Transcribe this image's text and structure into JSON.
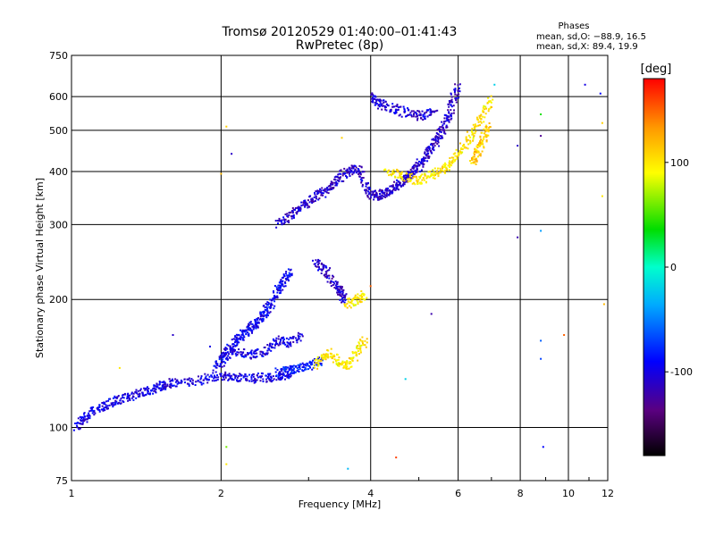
{
  "chart_data": {
    "type": "scatter",
    "title": "Tromsø 20120529 01:40:00–01:41:43",
    "subtitle": "RwPretec (8p)",
    "xlabel": "Frequency [MHz]",
    "ylabel": "Stationary phase Virtual Height [km]",
    "x_scale": "log",
    "y_scale": "log",
    "xlim": [
      1,
      12
    ],
    "ylim": [
      75,
      750
    ],
    "x_ticks": [
      "1",
      "2",
      "4",
      "6",
      "8",
      "10",
      "12"
    ],
    "y_ticks": [
      "75",
      "100",
      "200",
      "300",
      "400",
      "500",
      "600",
      "750"
    ],
    "x_tick_values": [
      1,
      2,
      4,
      6,
      8,
      10,
      12
    ],
    "y_tick_values": [
      75,
      100,
      200,
      300,
      400,
      500,
      600,
      750
    ],
    "grid": true,
    "phases_box": {
      "title": "Phases",
      "line1": "mean, sd,O: −88.9, 16.5",
      "line2": "mean, sd,X:  89.4, 19.9"
    },
    "colorbar": {
      "label": "[deg]",
      "range": [
        -180,
        180
      ],
      "ticks": [
        "100",
        "0",
        "-100"
      ],
      "tick_values": [
        100,
        0,
        -100
      ]
    },
    "traces": [
      {
        "name": "",
        "phase": -100,
        "points": [
          [
            1.02,
            100
          ],
          [
            1.05,
            104
          ],
          [
            1.08,
            107
          ],
          [
            1.12,
            110
          ],
          [
            1.16,
            112
          ],
          [
            1.2,
            114
          ],
          [
            1.25,
            116
          ],
          [
            1.3,
            118
          ],
          [
            1.35,
            120
          ],
          [
            1.4,
            121
          ],
          [
            1.45,
            123
          ],
          [
            1.5,
            124
          ],
          [
            1.55,
            126
          ],
          [
            1.6,
            127
          ],
          [
            1.7,
            128
          ],
          [
            1.8,
            129
          ],
          [
            1.9,
            131
          ],
          [
            2.0,
            132
          ],
          [
            2.1,
            132
          ],
          [
            2.2,
            131
          ],
          [
            2.3,
            130
          ],
          [
            2.4,
            131
          ],
          [
            2.5,
            131
          ],
          [
            2.6,
            132
          ],
          [
            2.7,
            133
          ],
          [
            2.8,
            135
          ]
        ]
      },
      {
        "name": "",
        "phase": -95,
        "points": [
          [
            1.95,
            138
          ],
          [
            2.0,
            142
          ],
          [
            2.05,
            148
          ],
          [
            2.1,
            155
          ],
          [
            2.15,
            160
          ],
          [
            2.2,
            165
          ],
          [
            2.25,
            168
          ],
          [
            2.3,
            172
          ],
          [
            2.35,
            175
          ],
          [
            2.4,
            180
          ],
          [
            2.45,
            186
          ],
          [
            2.5,
            192
          ],
          [
            2.55,
            200
          ],
          [
            2.6,
            210
          ],
          [
            2.65,
            218
          ],
          [
            2.7,
            225
          ],
          [
            2.75,
            235
          ]
        ]
      },
      {
        "name": "",
        "phase": -100,
        "points": [
          [
            2.0,
            150
          ],
          [
            2.1,
            152
          ],
          [
            2.2,
            150
          ],
          [
            2.3,
            148
          ],
          [
            2.4,
            150
          ],
          [
            2.5,
            155
          ],
          [
            2.6,
            160
          ],
          [
            2.7,
            158
          ],
          [
            2.8,
            160
          ],
          [
            2.9,
            165
          ]
        ]
      },
      {
        "name": "",
        "phase": -85,
        "points": [
          [
            2.6,
            135
          ],
          [
            2.7,
            136
          ],
          [
            2.8,
            137
          ],
          [
            2.9,
            138
          ],
          [
            3.0,
            140
          ],
          [
            3.1,
            142
          ],
          [
            3.2,
            143
          ]
        ]
      },
      {
        "name": "",
        "phase": -110,
        "points": [
          [
            2.6,
            300
          ],
          [
            2.7,
            310
          ],
          [
            2.8,
            320
          ],
          [
            2.9,
            330
          ],
          [
            3.0,
            340
          ],
          [
            3.1,
            350
          ],
          [
            3.2,
            355
          ],
          [
            3.3,
            365
          ],
          [
            3.4,
            375
          ],
          [
            3.5,
            390
          ],
          [
            3.6,
            400
          ],
          [
            3.7,
            405
          ],
          [
            3.8,
            400
          ],
          [
            3.9,
            370
          ],
          [
            4.0,
            355
          ],
          [
            4.1,
            350
          ],
          [
            4.2,
            352
          ],
          [
            4.3,
            356
          ],
          [
            4.4,
            362
          ],
          [
            4.5,
            368
          ],
          [
            4.6,
            375
          ],
          [
            4.7,
            383
          ],
          [
            4.8,
            392
          ],
          [
            4.9,
            402
          ],
          [
            5.0,
            413
          ],
          [
            5.1,
            425
          ],
          [
            5.2,
            438
          ],
          [
            5.3,
            452
          ],
          [
            5.4,
            468
          ],
          [
            5.5,
            485
          ],
          [
            5.6,
            505
          ],
          [
            5.7,
            530
          ],
          [
            5.8,
            560
          ],
          [
            5.9,
            600
          ],
          [
            6.0,
            640
          ]
        ]
      },
      {
        "name": "",
        "phase": -110,
        "points": [
          [
            3.1,
            245
          ],
          [
            3.2,
            238
          ],
          [
            3.3,
            228
          ],
          [
            3.4,
            218
          ],
          [
            3.45,
            210
          ],
          [
            3.5,
            205
          ],
          [
            3.55,
            200
          ]
        ]
      },
      {
        "name": "",
        "phase": -105,
        "points": [
          [
            4.0,
            600
          ],
          [
            4.1,
            590
          ],
          [
            4.2,
            575
          ],
          [
            4.4,
            565
          ],
          [
            4.6,
            555
          ],
          [
            4.8,
            545
          ],
          [
            5.0,
            540
          ],
          [
            5.2,
            545
          ],
          [
            5.4,
            560
          ]
        ]
      },
      {
        "name": "",
        "phase": 100,
        "points": [
          [
            3.1,
            140
          ],
          [
            3.2,
            145
          ],
          [
            3.3,
            150
          ],
          [
            3.4,
            145
          ],
          [
            3.5,
            140
          ],
          [
            3.6,
            138
          ],
          [
            3.7,
            145
          ],
          [
            3.8,
            155
          ],
          [
            3.9,
            160
          ]
        ]
      },
      {
        "name": "",
        "phase": 100,
        "points": [
          [
            3.6,
            195
          ],
          [
            3.7,
            198
          ],
          [
            3.8,
            200
          ],
          [
            3.9,
            205
          ]
        ]
      },
      {
        "name": "",
        "phase": 100,
        "points": [
          [
            4.3,
            400
          ],
          [
            4.5,
            395
          ],
          [
            4.8,
            385
          ],
          [
            5.0,
            380
          ],
          [
            5.2,
            390
          ],
          [
            5.4,
            395
          ],
          [
            5.6,
            405
          ],
          [
            5.8,
            420
          ],
          [
            6.0,
            440
          ],
          [
            6.2,
            465
          ],
          [
            6.4,
            490
          ],
          [
            6.6,
            520
          ],
          [
            6.8,
            560
          ],
          [
            7.0,
            595
          ]
        ]
      },
      {
        "name": "",
        "phase": 110,
        "points": [
          [
            6.4,
            420
          ],
          [
            6.5,
            435
          ],
          [
            6.6,
            450
          ],
          [
            6.7,
            470
          ],
          [
            6.8,
            490
          ],
          [
            6.9,
            510
          ]
        ]
      }
    ],
    "scattered_points": [
      {
        "x": 2.1,
        "y": 440,
        "phase": -110
      },
      {
        "x": 2.05,
        "y": 510,
        "phase": 110
      },
      {
        "x": 2.0,
        "y": 395,
        "phase": 120
      },
      {
        "x": 2.05,
        "y": 90,
        "phase": 60
      },
      {
        "x": 2.05,
        "y": 82,
        "phase": 100
      },
      {
        "x": 3.6,
        "y": 80,
        "phase": -30
      },
      {
        "x": 4.0,
        "y": 215,
        "phase": 150
      },
      {
        "x": 4.5,
        "y": 85,
        "phase": 160
      },
      {
        "x": 5.3,
        "y": 185,
        "phase": -120
      },
      {
        "x": 4.7,
        "y": 130,
        "phase": -20
      },
      {
        "x": 7.9,
        "y": 460,
        "phase": -110
      },
      {
        "x": 7.9,
        "y": 280,
        "phase": -120
      },
      {
        "x": 8.8,
        "y": 545,
        "phase": 40
      },
      {
        "x": 8.8,
        "y": 485,
        "phase": -130
      },
      {
        "x": 8.8,
        "y": 290,
        "phase": -40
      },
      {
        "x": 8.8,
        "y": 160,
        "phase": -60
      },
      {
        "x": 8.8,
        "y": 145,
        "phase": -70
      },
      {
        "x": 8.9,
        "y": 90,
        "phase": -90
      },
      {
        "x": 9.8,
        "y": 165,
        "phase": 150
      },
      {
        "x": 10.8,
        "y": 640,
        "phase": -100
      },
      {
        "x": 11.6,
        "y": 610,
        "phase": -90
      },
      {
        "x": 11.7,
        "y": 350,
        "phase": 100
      },
      {
        "x": 11.8,
        "y": 195,
        "phase": 120
      },
      {
        "x": 11.7,
        "y": 520,
        "phase": 110
      },
      {
        "x": 1.25,
        "y": 138,
        "phase": 100
      },
      {
        "x": 1.6,
        "y": 165,
        "phase": -110
      },
      {
        "x": 1.9,
        "y": 155,
        "phase": -100
      },
      {
        "x": 3.5,
        "y": 480,
        "phase": 110
      },
      {
        "x": 7.1,
        "y": 640,
        "phase": -20
      }
    ]
  }
}
